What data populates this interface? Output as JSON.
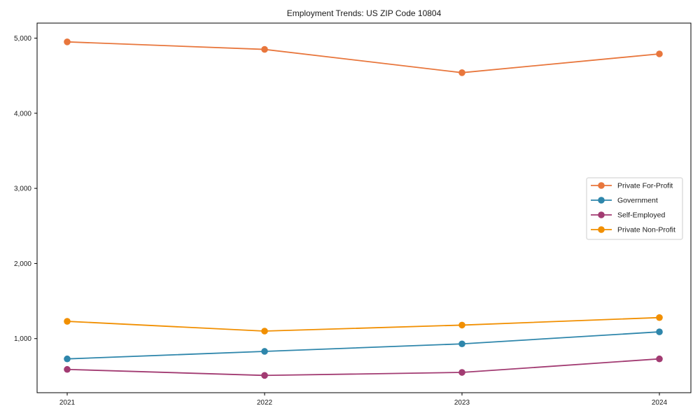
{
  "title": "Employment Trends: US ZIP Code 10804",
  "chart_data": {
    "type": "line",
    "title": "Employment Trends: US ZIP Code 10804",
    "categories": [
      "2021",
      "2022",
      "2023",
      "2024"
    ],
    "series": [
      {
        "name": "Private For-Profit",
        "color": "#E8763C",
        "values": [
          4950,
          4850,
          4540,
          4790
        ]
      },
      {
        "name": "Government",
        "color": "#2E86AB",
        "values": [
          730,
          830,
          930,
          1090
        ]
      },
      {
        "name": "Self-Employed",
        "color": "#A23B72",
        "values": [
          590,
          510,
          550,
          730
        ]
      },
      {
        "name": "Private Non-Profit",
        "color": "#F18F01",
        "values": [
          1230,
          1100,
          1180,
          1280
        ]
      }
    ],
    "xlabel": "",
    "ylabel": "",
    "ylim": [
      280,
      5200
    ],
    "yticks": [
      1000,
      2000,
      3000,
      4000,
      5000
    ],
    "ytick_labels": [
      "1,000",
      "2,000",
      "3,000",
      "4,000",
      "5,000"
    ],
    "grid": false,
    "legend_position": "center-right",
    "axis_color": "#000000",
    "background_color": "#ffffff"
  }
}
